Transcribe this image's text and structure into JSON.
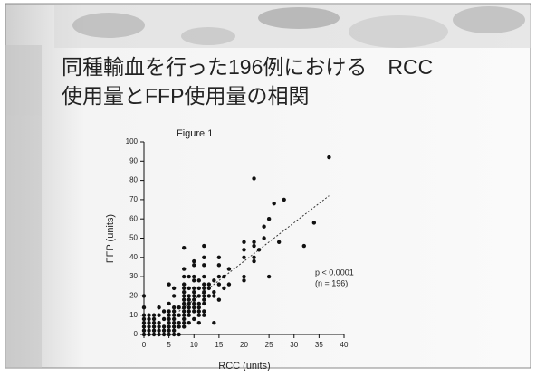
{
  "title_lines": [
    "同種輸血を行った196例における　RCC",
    "使用量とFFP使用量の相関"
  ],
  "chart_data": {
    "type": "scatter",
    "title": "Figure 1",
    "x_label": "RCC (units)",
    "y_label": "FFP (units)",
    "annotations": [
      "p < 0.0001",
      "(n = 196)"
    ],
    "color": "#111111",
    "x": [
      0,
      0,
      0,
      0,
      0,
      0,
      0,
      0,
      1,
      1,
      1,
      1,
      1,
      1,
      2,
      2,
      2,
      2,
      2,
      2,
      3,
      3,
      3,
      3,
      3,
      3,
      4,
      4,
      4,
      4,
      4,
      5,
      5,
      5,
      5,
      5,
      5,
      5,
      5,
      5,
      6,
      6,
      6,
      6,
      6,
      6,
      6,
      6,
      6,
      6,
      7,
      7,
      7,
      7,
      7,
      8,
      8,
      8,
      8,
      8,
      8,
      8,
      8,
      8,
      8,
      8,
      8,
      8,
      8,
      8,
      9,
      9,
      9,
      9,
      9,
      9,
      9,
      9,
      9,
      10,
      10,
      10,
      10,
      10,
      10,
      10,
      10,
      10,
      10,
      10,
      10,
      11,
      11,
      11,
      11,
      11,
      11,
      11,
      11,
      12,
      12,
      12,
      12,
      12,
      12,
      12,
      12,
      12,
      12,
      12,
      12,
      13,
      13,
      13,
      14,
      14,
      14,
      14,
      15,
      15,
      15,
      15,
      15,
      16,
      16,
      17,
      17,
      20,
      20,
      20,
      20,
      20,
      22,
      22,
      22,
      22,
      22,
      23,
      24,
      24,
      25,
      25,
      26,
      27,
      28,
      32,
      34,
      37
    ],
    "values": [
      0,
      2,
      4,
      6,
      8,
      10,
      14,
      20,
      0,
      2,
      4,
      6,
      8,
      10,
      0,
      2,
      4,
      6,
      8,
      10,
      0,
      2,
      4,
      6,
      10,
      14,
      0,
      2,
      4,
      8,
      12,
      0,
      2,
      4,
      6,
      8,
      10,
      12,
      16,
      26,
      0,
      2,
      4,
      6,
      8,
      10,
      12,
      14,
      20,
      24,
      0,
      4,
      6,
      10,
      14,
      4,
      6,
      8,
      10,
      12,
      14,
      16,
      18,
      20,
      22,
      24,
      26,
      30,
      34,
      45,
      6,
      10,
      12,
      14,
      16,
      18,
      20,
      24,
      30,
      8,
      12,
      14,
      16,
      18,
      20,
      22,
      24,
      28,
      30,
      36,
      38,
      6,
      10,
      12,
      14,
      16,
      20,
      24,
      28,
      10,
      12,
      16,
      18,
      20,
      22,
      24,
      26,
      30,
      36,
      40,
      46,
      20,
      24,
      26,
      6,
      20,
      22,
      28,
      18,
      26,
      30,
      36,
      40,
      24,
      30,
      26,
      34,
      28,
      30,
      40,
      44,
      48,
      38,
      40,
      46,
      48,
      81,
      44,
      50,
      56,
      30,
      60,
      68,
      48,
      70,
      46,
      58,
      92
    ],
    "trendline": {
      "x": [
        7,
        37
      ],
      "y": [
        12,
        72
      ]
    },
    "xlim": [
      0,
      40
    ],
    "xticks": [
      0,
      5,
      10,
      15,
      20,
      25,
      30,
      35,
      40
    ],
    "ylim": [
      0,
      100
    ],
    "yticks": [
      0,
      10,
      20,
      30,
      40,
      50,
      60,
      70,
      80,
      90,
      100
    ],
    "grid": false
  }
}
